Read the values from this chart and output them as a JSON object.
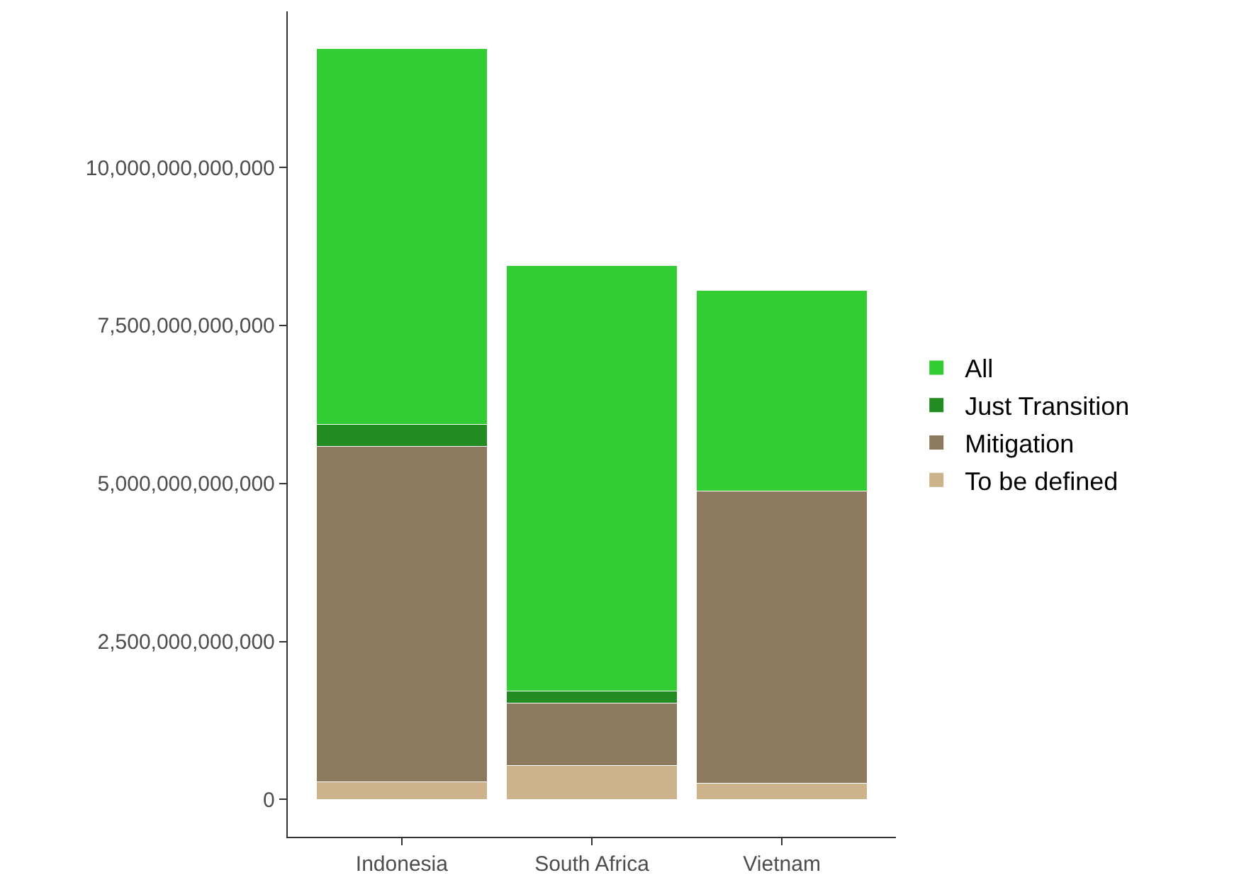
{
  "chart_data": {
    "type": "bar",
    "stacked": true,
    "categories": [
      "Indonesia",
      "South Africa",
      "Vietnam"
    ],
    "series": [
      {
        "name": "To be defined",
        "color": "#cdb38b",
        "values": [
          285000000000,
          540000000000,
          260000000000
        ]
      },
      {
        "name": "Mitigation",
        "color": "#8b7a5e",
        "values": [
          5300000000000,
          990000000000,
          4620000000000
        ]
      },
      {
        "name": "Just Transition",
        "color": "#228b22",
        "values": [
          350000000000,
          190000000000,
          0
        ]
      },
      {
        "name": "All",
        "color": "#32cd32",
        "values": [
          5950000000000,
          6730000000000,
          3180000000000
        ]
      }
    ],
    "ylim": [
      -590000000000,
      12470000000000
    ],
    "yticks": [
      {
        "value": 0,
        "label": "0"
      },
      {
        "value": 2500000000000,
        "label": "2,500,000,000,000"
      },
      {
        "value": 5000000000000,
        "label": "5,000,000,000,000"
      },
      {
        "value": 7500000000000,
        "label": "7,500,000,000,000"
      },
      {
        "value": 10000000000000,
        "label": "10,000,000,000,000"
      }
    ],
    "grid": false,
    "legend": "right"
  }
}
